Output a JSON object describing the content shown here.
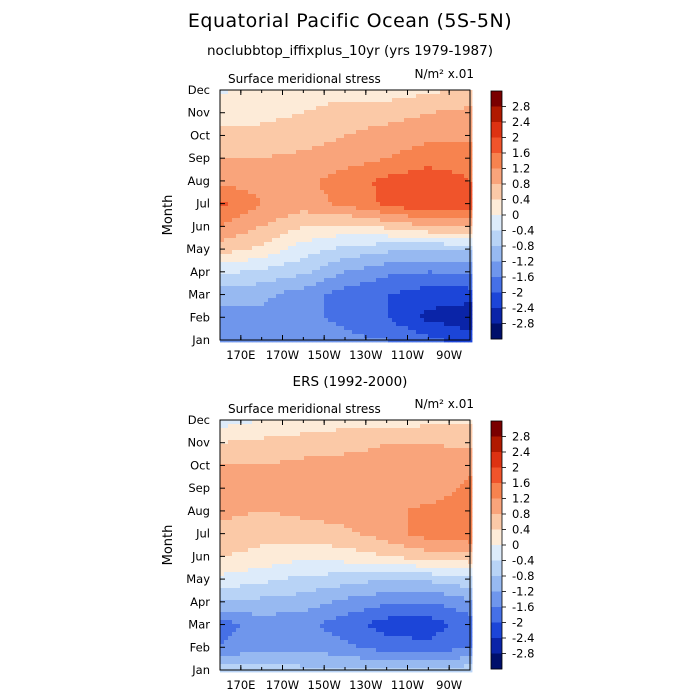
{
  "page": {
    "title": "Equatorial Pacific Ocean (5S-5N)",
    "background": "#ffffff"
  },
  "colorbar": {
    "levels": [
      -2.8,
      -2.4,
      -2.0,
      -1.6,
      -1.2,
      -0.8,
      -0.4,
      0,
      0.4,
      0.8,
      1.2,
      1.6,
      2.0,
      2.4,
      2.8
    ],
    "labels": [
      "2.8",
      "2.4",
      "2",
      "1.6",
      "1.2",
      "0.8",
      "0.4",
      "0",
      "-0.4",
      "-0.8",
      "-1.2",
      "-1.6",
      "-2",
      "-2.4",
      "-2.8"
    ],
    "colors_top_to_bottom": [
      "#7a0000",
      "#b01a00",
      "#dd3212",
      "#f0542b",
      "#f7834f",
      "#f9a47b",
      "#fbc9a7",
      "#fdebd8",
      "#ddebfa",
      "#b8d3f6",
      "#97b9f1",
      "#6f96ec",
      "#4670e6",
      "#1c45d8",
      "#0a24a8",
      "#000f6b"
    ]
  },
  "chart_data": [
    {
      "type": "heatmap",
      "title": "noclubbtop_iffixplus_10yr (yrs 1979-1987)",
      "panel_label": "Surface meridional stress",
      "units": "N/m² x.01",
      "ylabel": "Month",
      "x_ticks": [
        "170E",
        "170W",
        "150W",
        "130W",
        "110W",
        "90W"
      ],
      "y_ticks": [
        "Jan",
        "Feb",
        "Mar",
        "Apr",
        "May",
        "Jun",
        "Jul",
        "Aug",
        "Sep",
        "Oct",
        "Nov",
        "Dec"
      ],
      "x_lon": [
        160,
        180,
        200,
        220,
        240,
        260,
        280
      ],
      "values": [
        [
          -1.3,
          -1.3,
          -1.4,
          -1.5,
          -1.6,
          -1.9,
          -2.2
        ],
        [
          -1.4,
          -1.3,
          -1.5,
          -1.7,
          -2.0,
          -2.5,
          -2.7
        ],
        [
          -1.0,
          -1.1,
          -1.4,
          -1.8,
          -2.0,
          -2.2,
          -2.2
        ],
        [
          -0.3,
          -0.5,
          -0.7,
          -1.2,
          -1.5,
          -1.6,
          -1.5
        ],
        [
          0.6,
          0.3,
          -0.2,
          -0.5,
          -0.7,
          -0.8,
          -0.7
        ],
        [
          1.2,
          0.8,
          0.4,
          0.3,
          0.5,
          0.8,
          0.9
        ],
        [
          1.7,
          1.2,
          1.0,
          1.3,
          1.7,
          2.0,
          1.9
        ],
        [
          1.1,
          1.0,
          1.1,
          1.4,
          1.7,
          1.9,
          1.6
        ],
        [
          0.8,
          0.8,
          0.9,
          1.0,
          1.2,
          1.4,
          1.4
        ],
        [
          0.5,
          0.5,
          0.6,
          0.8,
          1.0,
          1.1,
          1.1
        ],
        [
          0.3,
          0.3,
          0.4,
          0.5,
          0.6,
          0.8,
          0.9
        ],
        [
          -0.1,
          0.2,
          0.3,
          0.3,
          0.2,
          0.3,
          0.5
        ]
      ]
    },
    {
      "type": "heatmap",
      "title": "ERS (1992-2000)",
      "panel_label": "Surface meridional stress",
      "units": "N/m² x.01",
      "ylabel": "Month",
      "x_ticks": [
        "170E",
        "170W",
        "150W",
        "130W",
        "110W",
        "90W"
      ],
      "y_ticks": [
        "Jan",
        "Feb",
        "Mar",
        "Apr",
        "May",
        "Jun",
        "Jul",
        "Aug",
        "Sep",
        "Oct",
        "Nov",
        "Dec"
      ],
      "x_lon": [
        160,
        180,
        200,
        220,
        240,
        260,
        280
      ],
      "values": [
        [
          -0.6,
          -0.6,
          -0.7,
          -0.7,
          -0.8,
          -0.8,
          -0.6
        ],
        [
          -1.6,
          -1.3,
          -1.3,
          -1.5,
          -1.8,
          -1.9,
          -1.6
        ],
        [
          -1.8,
          -1.4,
          -1.5,
          -1.8,
          -2.2,
          -2.2,
          -1.8
        ],
        [
          -0.8,
          -0.9,
          -1.0,
          -1.3,
          -1.5,
          -1.6,
          -1.3
        ],
        [
          -0.1,
          -0.3,
          -0.5,
          -0.6,
          -0.8,
          -0.7,
          -0.5
        ],
        [
          0.4,
          0.3,
          0.1,
          0.2,
          0.4,
          0.6,
          0.7
        ],
        [
          0.7,
          0.5,
          0.6,
          0.7,
          1.0,
          1.4,
          1.5
        ],
        [
          0.9,
          0.8,
          0.9,
          1.0,
          1.1,
          1.3,
          1.3
        ],
        [
          1.2,
          0.9,
          0.9,
          0.8,
          0.9,
          1.0,
          1.3
        ],
        [
          0.8,
          0.8,
          0.9,
          0.9,
          0.9,
          1.0,
          1.1
        ],
        [
          0.4,
          0.5,
          0.6,
          0.7,
          0.8,
          0.8,
          0.7
        ],
        [
          -0.2,
          0.0,
          0.1,
          0.2,
          0.1,
          0.3,
          0.3
        ]
      ]
    }
  ]
}
